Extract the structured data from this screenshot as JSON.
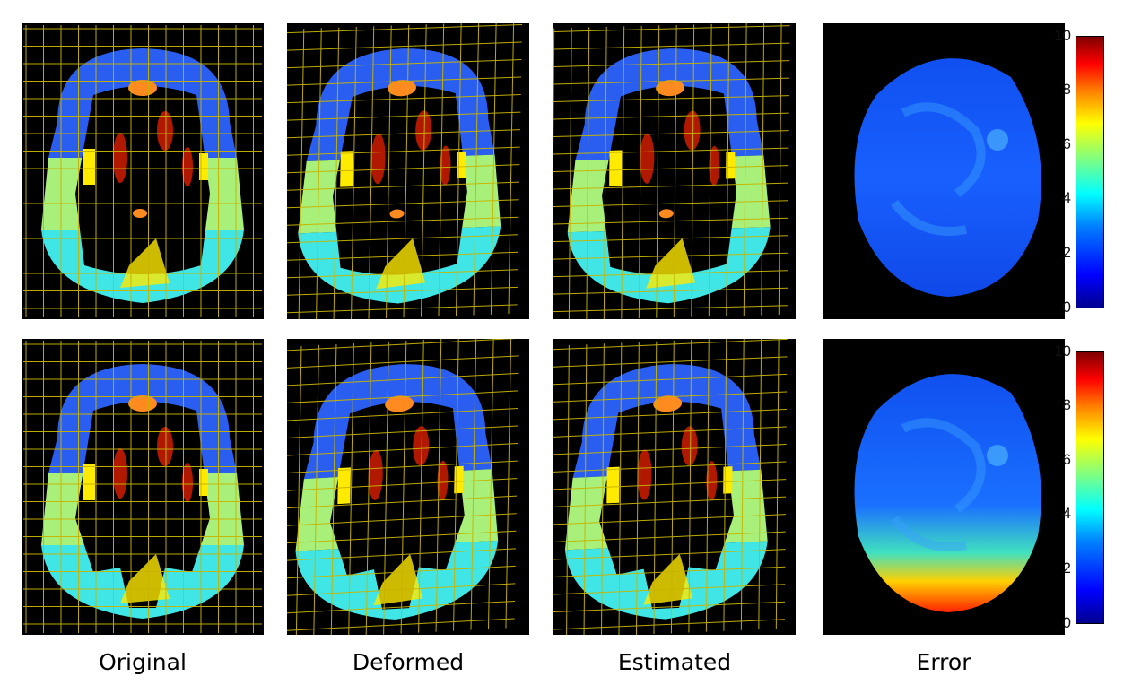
{
  "labels": {
    "original": "Original",
    "deformed": "Deformed",
    "estimated": "Estimated",
    "error": "Error"
  },
  "colorbar": {
    "ticks": [
      "10",
      "8",
      "6",
      "4",
      "2",
      "0"
    ],
    "min": 0,
    "max": 10
  },
  "colors": {
    "grid": "#c8b400",
    "brain_top": "#2a5ef0",
    "brain_mid": "#a8f07a",
    "brain_bottom": "#40e6e6",
    "ventricle": "#b01800",
    "caudate": "#ffea00",
    "spot": "#ff8a20",
    "error_low": "#1050f0",
    "error_high": "#ff2000"
  }
}
